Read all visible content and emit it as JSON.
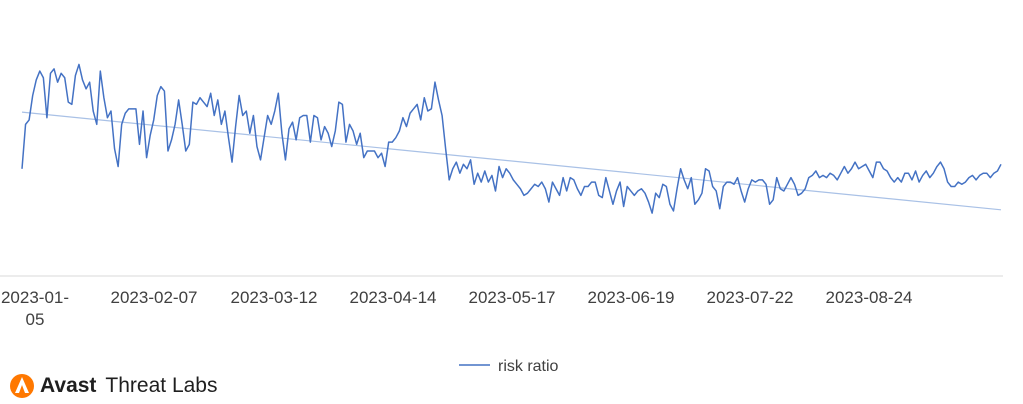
{
  "chart_data": {
    "type": "line",
    "title": "",
    "xlabel": "",
    "ylabel": "",
    "grid": false,
    "legend_position": "bottom",
    "x_tick_labels": [
      "2023-01-\n05",
      "2023-02-07",
      "2023-03-12",
      "2023-04-14",
      "2023-05-17",
      "2023-06-19",
      "2023-07-22",
      "2023-08-24"
    ],
    "x_start": "2023-01-05",
    "x_end": "2023-09-18",
    "series": [
      {
        "name": "risk ratio",
        "color": "#4472c4",
        "values": [
          0.42,
          0.62,
          0.64,
          0.75,
          0.82,
          0.86,
          0.83,
          0.65,
          0.85,
          0.87,
          0.81,
          0.85,
          0.83,
          0.72,
          0.71,
          0.84,
          0.89,
          0.82,
          0.78,
          0.81,
          0.68,
          0.62,
          0.86,
          0.74,
          0.65,
          0.68,
          0.51,
          0.43,
          0.62,
          0.67,
          0.69,
          0.69,
          0.69,
          0.53,
          0.68,
          0.47,
          0.57,
          0.64,
          0.75,
          0.79,
          0.77,
          0.5,
          0.55,
          0.62,
          0.73,
          0.62,
          0.5,
          0.53,
          0.72,
          0.71,
          0.74,
          0.72,
          0.7,
          0.76,
          0.66,
          0.73,
          0.62,
          0.68,
          0.56,
          0.45,
          0.61,
          0.75,
          0.66,
          0.68,
          0.58,
          0.66,
          0.52,
          0.46,
          0.56,
          0.66,
          0.62,
          0.68,
          0.76,
          0.58,
          0.46,
          0.6,
          0.63,
          0.55,
          0.65,
          0.66,
          0.66,
          0.54,
          0.66,
          0.65,
          0.55,
          0.61,
          0.58,
          0.52,
          0.59,
          0.72,
          0.71,
          0.54,
          0.62,
          0.59,
          0.53,
          0.58,
          0.47,
          0.5,
          0.5,
          0.5,
          0.47,
          0.49,
          0.43,
          0.54,
          0.54,
          0.56,
          0.59,
          0.65,
          0.61,
          0.67,
          0.69,
          0.71,
          0.64,
          0.74,
          0.68,
          0.69,
          0.81,
          0.73,
          0.66,
          0.51,
          0.37,
          0.42,
          0.45,
          0.4,
          0.44,
          0.42,
          0.46,
          0.35,
          0.4,
          0.36,
          0.41,
          0.36,
          0.39,
          0.32,
          0.43,
          0.38,
          0.42,
          0.4,
          0.37,
          0.35,
          0.33,
          0.3,
          0.31,
          0.33,
          0.35,
          0.34,
          0.36,
          0.33,
          0.27,
          0.36,
          0.33,
          0.3,
          0.38,
          0.32,
          0.38,
          0.37,
          0.33,
          0.3,
          0.34,
          0.34,
          0.36,
          0.36,
          0.3,
          0.29,
          0.38,
          0.32,
          0.26,
          0.32,
          0.36,
          0.25,
          0.34,
          0.32,
          0.3,
          0.32,
          0.33,
          0.31,
          0.27,
          0.22,
          0.31,
          0.29,
          0.35,
          0.34,
          0.26,
          0.23,
          0.33,
          0.42,
          0.37,
          0.33,
          0.38,
          0.26,
          0.28,
          0.31,
          0.42,
          0.41,
          0.34,
          0.32,
          0.24,
          0.34,
          0.36,
          0.36,
          0.35,
          0.38,
          0.32,
          0.27,
          0.33,
          0.37,
          0.36,
          0.37,
          0.37,
          0.35,
          0.26,
          0.28,
          0.38,
          0.33,
          0.32,
          0.35,
          0.38,
          0.35,
          0.3,
          0.31,
          0.33,
          0.38,
          0.39,
          0.41,
          0.38,
          0.39,
          0.38,
          0.4,
          0.39,
          0.37,
          0.4,
          0.43,
          0.4,
          0.42,
          0.45,
          0.42,
          0.43,
          0.44,
          0.41,
          0.38,
          0.45,
          0.45,
          0.42,
          0.41,
          0.38,
          0.36,
          0.38,
          0.36,
          0.4,
          0.4,
          0.37,
          0.41,
          0.36,
          0.39,
          0.41,
          0.38,
          0.4,
          0.43,
          0.45,
          0.42,
          0.36,
          0.34,
          0.34,
          0.36,
          0.35,
          0.36,
          0.38,
          0.39,
          0.37,
          0.39,
          0.4,
          0.4,
          0.38,
          0.4,
          0.41,
          0.44
        ]
      },
      {
        "name": "",
        "color": "#a9c1e6",
        "trendline": true,
        "values": [
          0.675,
          0.235
        ]
      }
    ]
  },
  "legend": {
    "label": "risk ratio"
  },
  "logo": {
    "brand": "Avast",
    "subtitle": "Threat Labs"
  },
  "colors": {
    "series": "#4472c4",
    "trend": "#a9c1e6",
    "axis": "#d9d9d9",
    "text": "#404040",
    "logo_orange": "#ff7800"
  }
}
